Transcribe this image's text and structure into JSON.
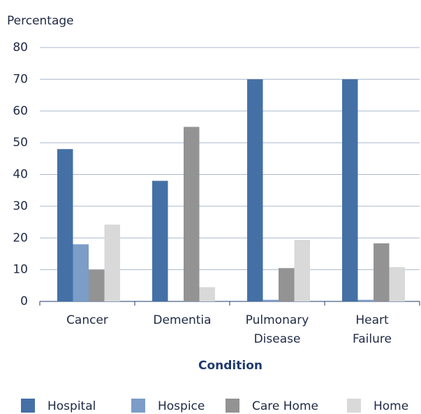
{
  "chart_data": {
    "type": "bar",
    "y_label": "Percentage",
    "x_label": "Condition",
    "categories": [
      "Cancer",
      "Dementia",
      "Pulmonary Disease",
      "Heart Failure"
    ],
    "series": [
      {
        "name": "Hospital",
        "color": "#4470a6",
        "values": [
          48,
          38,
          70,
          70
        ]
      },
      {
        "name": "Hospice",
        "color": "#7b9dc7",
        "values": [
          18,
          0,
          0.5,
          0.5
        ]
      },
      {
        "name": "Care Home",
        "color": "#939393",
        "values": [
          10,
          55,
          10.5,
          18.3
        ]
      },
      {
        "name": "Home",
        "color": "#d9d9d9",
        "values": [
          24.2,
          4.5,
          19.4,
          10.8
        ]
      }
    ],
    "ylim": [
      0,
      80
    ],
    "yticks": [
      0,
      10,
      20,
      30,
      40,
      50,
      60,
      70,
      80
    ],
    "grid": true
  }
}
